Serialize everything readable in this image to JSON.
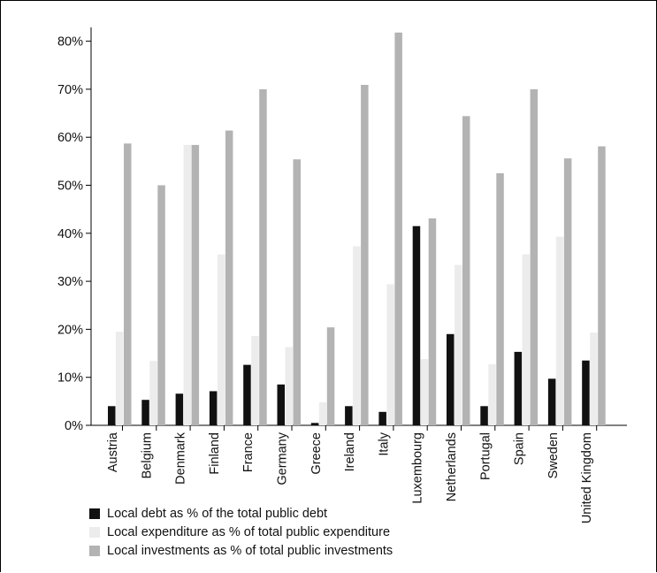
{
  "chart_data": {
    "type": "bar",
    "categories": [
      "Austria",
      "Belgium",
      "Denmark",
      "Finland",
      "France",
      "Germany",
      "Greece",
      "Ireland",
      "Italy",
      "Luxembourg",
      "Netherlands",
      "Portugal",
      "Spain",
      "Sweden",
      "United Kingdom"
    ],
    "series": [
      {
        "name": "Local debt as % of the total public debt",
        "color": "#111111",
        "values": [
          4,
          5.3,
          6.6,
          7.1,
          12.6,
          8.5,
          0.5,
          4,
          2.8,
          41.5,
          19,
          4,
          15.3,
          9.7,
          13.5
        ]
      },
      {
        "name": "Local expenditure as % of total public expenditure",
        "color": "#ececec",
        "values": [
          19.5,
          13.4,
          58.4,
          35.6,
          18.6,
          16.3,
          4.8,
          37.3,
          29.4,
          13.8,
          33.4,
          12.7,
          35.6,
          39.3,
          19.3
        ]
      },
      {
        "name": "Local investments as % of total public  investments",
        "color": "#b3b3b3",
        "values": [
          58.7,
          50,
          58.4,
          61.4,
          70,
          55.4,
          20.4,
          70.9,
          81.8,
          43.1,
          64.4,
          52.5,
          70,
          55.6,
          58.1
        ]
      }
    ],
    "y_ticks": [
      "0%",
      "10%",
      "20%",
      "30%",
      "40%",
      "50%",
      "60%",
      "70%",
      "80%"
    ],
    "ylim": [
      0,
      85
    ],
    "grid": false,
    "legend_position": "bottom-left",
    "title": "",
    "xlabel": "",
    "ylabel": ""
  }
}
